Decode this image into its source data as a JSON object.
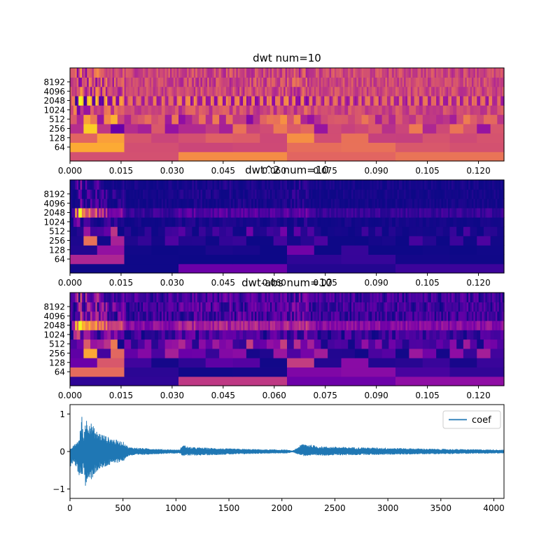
{
  "chart_data": [
    {
      "type": "heatmap",
      "title": "dwt num=10",
      "colormap": "plasma",
      "xticks": [
        "0.000",
        "0.015",
        "0.030",
        "0.045",
        "0.060",
        "0.075",
        "0.090",
        "0.105",
        "0.120"
      ],
      "xlim": [
        0,
        0.1275
      ],
      "yticks": [
        "64",
        "128",
        "256",
        "512",
        "1024",
        "2048",
        "4096",
        "8192"
      ],
      "levels": 10,
      "grid": false
    },
    {
      "type": "heatmap",
      "title": "dwt^2 num=10",
      "colormap": "plasma",
      "xticks": [
        "0.000",
        "0.015",
        "0.030",
        "0.045",
        "0.060",
        "0.075",
        "0.090",
        "0.105",
        "0.120"
      ],
      "xlim": [
        0,
        0.1275
      ],
      "yticks": [
        "64",
        "128",
        "256",
        "512",
        "1024",
        "2048",
        "4096",
        "8192"
      ],
      "levels": 10,
      "grid": false
    },
    {
      "type": "heatmap",
      "title": "dwt-abs num=10",
      "colormap": "plasma",
      "xticks": [
        "0.000",
        "0.015",
        "0.030",
        "0.045",
        "0.060",
        "0.075",
        "0.090",
        "0.105",
        "0.120"
      ],
      "xlim": [
        0,
        0.1275
      ],
      "yticks": [
        "64",
        "128",
        "256",
        "512",
        "1024",
        "2048",
        "4096",
        "8192"
      ],
      "levels": 10,
      "grid": false
    },
    {
      "type": "line",
      "title": "",
      "xlim": [
        0,
        4096
      ],
      "ylim": [
        -1.25,
        1.25
      ],
      "xticks": [
        "0",
        "500",
        "1000",
        "1500",
        "2000",
        "2500",
        "3000",
        "3500",
        "4000"
      ],
      "yticks": [
        "−1",
        "0",
        "1"
      ],
      "legend": "top-right",
      "series": [
        {
          "name": "coef",
          "color": "#1f77b4",
          "envelope": [
            [
              0,
              0.05
            ],
            [
              60,
              0.25
            ],
            [
              90,
              0.35
            ],
            [
              110,
              1.05
            ],
            [
              130,
              0.3
            ],
            [
              140,
              0.9
            ],
            [
              180,
              0.85
            ],
            [
              250,
              0.55
            ],
            [
              350,
              0.4
            ],
            [
              450,
              0.3
            ],
            [
              510,
              0.25
            ],
            [
              550,
              0.12
            ],
            [
              700,
              0.09
            ],
            [
              900,
              0.06
            ],
            [
              1040,
              0.05
            ],
            [
              1060,
              0.2
            ],
            [
              1120,
              0.12
            ],
            [
              1300,
              0.1
            ],
            [
              1500,
              0.08
            ],
            [
              1800,
              0.06
            ],
            [
              2050,
              0.05
            ],
            [
              2100,
              0.02
            ],
            [
              2200,
              0.22
            ],
            [
              2350,
              0.14
            ],
            [
              2600,
              0.12
            ],
            [
              3000,
              0.1
            ],
            [
              3500,
              0.07
            ],
            [
              4096,
              0.05
            ]
          ],
          "negative_envelope": [
            [
              0,
              -0.45
            ],
            [
              40,
              -0.3
            ],
            [
              100,
              -0.75
            ],
            [
              130,
              -0.5
            ],
            [
              140,
              -0.98
            ],
            [
              180,
              -0.85
            ],
            [
              250,
              -0.55
            ],
            [
              350,
              -0.4
            ],
            [
              450,
              -0.3
            ],
            [
              510,
              -0.25
            ],
            [
              550,
              -0.12
            ],
            [
              700,
              -0.09
            ],
            [
              900,
              -0.06
            ],
            [
              1040,
              -0.05
            ],
            [
              1060,
              -0.12
            ],
            [
              1300,
              -0.1
            ],
            [
              1800,
              -0.06
            ],
            [
              2050,
              -0.05
            ],
            [
              2100,
              -0.02
            ],
            [
              2200,
              -0.12
            ],
            [
              2600,
              -0.1
            ],
            [
              3500,
              -0.07
            ],
            [
              4096,
              -0.05
            ]
          ]
        }
      ]
    }
  ]
}
